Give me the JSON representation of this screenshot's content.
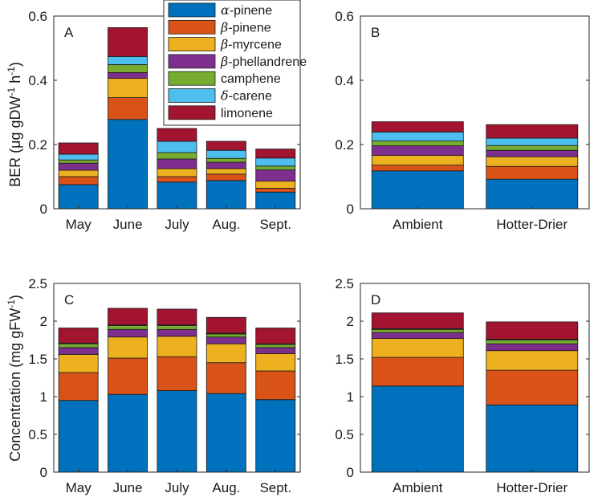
{
  "colors": {
    "alpha_pinene": "#0072bd",
    "beta_pinene": "#d95319",
    "beta_myrcene": "#edb120",
    "beta_phellandrene": "#7e2f8e",
    "camphene": "#77ac30",
    "delta_carene": "#4dbeee",
    "limonene": "#a2142f"
  },
  "legend": {
    "items": [
      {
        "greek": "α",
        "rest": "-pinene",
        "color_key": "alpha_pinene"
      },
      {
        "greek": "β",
        "rest": "-pinene",
        "color_key": "beta_pinene"
      },
      {
        "greek": "β",
        "rest": "-myrcene",
        "color_key": "beta_myrcene"
      },
      {
        "greek": "β",
        "rest": "-phellandrene",
        "color_key": "beta_phellandrene"
      },
      {
        "greek": "",
        "rest": "camphene",
        "color_key": "camphene"
      },
      {
        "greek": "δ",
        "rest": "-carene",
        "color_key": "delta_carene"
      },
      {
        "greek": "",
        "rest": "limonene",
        "color_key": "limonene"
      }
    ]
  },
  "ylabels": {
    "top": {
      "pre": "BER (",
      "mu": "μ",
      "mid": "g gDW",
      "sup1": "-1",
      "h": " h",
      "sup2": "-1",
      "post": ")"
    },
    "bottom": {
      "pre": "Concentration (mg gFW",
      "sup": "-1",
      "post": ")"
    }
  },
  "chart_data": [
    {
      "panel": "A",
      "type": "bar",
      "stacked": true,
      "categories": [
        "May",
        "June",
        "July",
        "Aug.",
        "Sept."
      ],
      "ylim": [
        0,
        0.6
      ],
      "yticks": [
        "0",
        "0.2",
        "0.4",
        "0.6"
      ],
      "series": [
        {
          "name": "α-pinene",
          "values": [
            0.075,
            0.278,
            0.083,
            0.088,
            0.052
          ]
        },
        {
          "name": "β-pinene",
          "values": [
            0.025,
            0.068,
            0.017,
            0.02,
            0.012
          ]
        },
        {
          "name": "β-myrcene",
          "values": [
            0.02,
            0.06,
            0.025,
            0.017,
            0.022
          ]
        },
        {
          "name": "β-phellandrene",
          "values": [
            0.022,
            0.018,
            0.03,
            0.02,
            0.035
          ]
        },
        {
          "name": "camphene",
          "values": [
            0.01,
            0.025,
            0.02,
            0.012,
            0.012
          ]
        },
        {
          "name": "δ-carene",
          "values": [
            0.018,
            0.025,
            0.035,
            0.025,
            0.025
          ]
        },
        {
          "name": "limonene",
          "values": [
            0.035,
            0.09,
            0.04,
            0.028,
            0.028
          ]
        }
      ]
    },
    {
      "panel": "B",
      "type": "bar",
      "stacked": true,
      "categories": [
        "Ambient",
        "Hotter-Drier"
      ],
      "ylim": [
        0,
        0.6
      ],
      "yticks": [
        "0",
        "0.2",
        "0.4",
        "0.6"
      ],
      "series": [
        {
          "name": "α-pinene",
          "values": [
            0.118,
            0.092
          ]
        },
        {
          "name": "β-pinene",
          "values": [
            0.018,
            0.04
          ]
        },
        {
          "name": "β-myrcene",
          "values": [
            0.03,
            0.03
          ]
        },
        {
          "name": "β-phellandrene",
          "values": [
            0.03,
            0.02
          ]
        },
        {
          "name": "camphene",
          "values": [
            0.015,
            0.015
          ]
        },
        {
          "name": "δ-carene",
          "values": [
            0.028,
            0.023
          ]
        },
        {
          "name": "limonene",
          "values": [
            0.032,
            0.042
          ]
        }
      ]
    },
    {
      "panel": "C",
      "type": "bar",
      "stacked": true,
      "categories": [
        "May",
        "June",
        "July",
        "Aug.",
        "Sept."
      ],
      "ylim": [
        0,
        2.5
      ],
      "yticks": [
        "0",
        "0.5",
        "1",
        "1.5",
        "2",
        "2.5"
      ],
      "series": [
        {
          "name": "α-pinene",
          "values": [
            0.95,
            1.03,
            1.08,
            1.04,
            0.96
          ]
        },
        {
          "name": "β-pinene",
          "values": [
            0.37,
            0.48,
            0.45,
            0.41,
            0.38
          ]
        },
        {
          "name": "β-myrcene",
          "values": [
            0.24,
            0.28,
            0.27,
            0.25,
            0.23
          ]
        },
        {
          "name": "β-phellandrene",
          "values": [
            0.09,
            0.1,
            0.09,
            0.09,
            0.08
          ]
        },
        {
          "name": "camphene",
          "values": [
            0.05,
            0.05,
            0.05,
            0.04,
            0.04
          ]
        },
        {
          "name": "δ-carene",
          "values": [
            0.01,
            0.01,
            0.01,
            0.01,
            0.01
          ]
        },
        {
          "name": "limonene",
          "values": [
            0.2,
            0.22,
            0.21,
            0.21,
            0.21
          ]
        }
      ]
    },
    {
      "panel": "D",
      "type": "bar",
      "stacked": true,
      "categories": [
        "Ambient",
        "Hotter-Drier"
      ],
      "ylim": [
        0,
        2.5
      ],
      "yticks": [
        "0",
        "0.5",
        "1",
        "1.5",
        "2",
        "2.5"
      ],
      "series": [
        {
          "name": "α-pinene",
          "values": [
            1.14,
            0.89
          ]
        },
        {
          "name": "β-pinene",
          "values": [
            0.38,
            0.46
          ]
        },
        {
          "name": "β-myrcene",
          "values": [
            0.25,
            0.26
          ]
        },
        {
          "name": "β-phellandrene",
          "values": [
            0.08,
            0.09
          ]
        },
        {
          "name": "camphene",
          "values": [
            0.04,
            0.05
          ]
        },
        {
          "name": "δ-carene",
          "values": [
            0.01,
            0.01
          ]
        },
        {
          "name": "limonene",
          "values": [
            0.21,
            0.23
          ]
        }
      ]
    }
  ]
}
